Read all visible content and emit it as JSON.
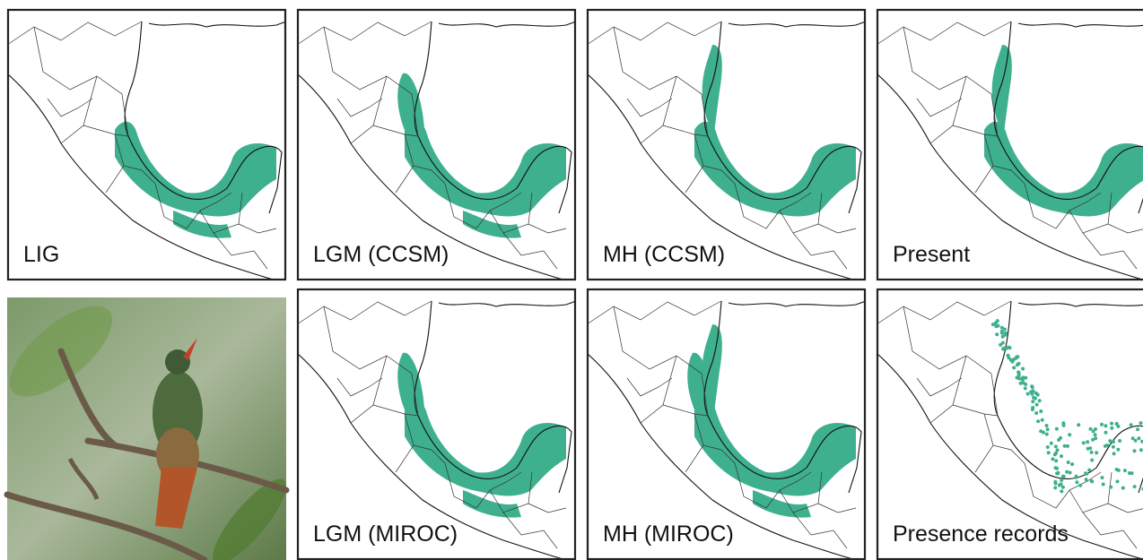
{
  "panels": [
    {
      "label": "LIG"
    },
    {
      "label": "LGM (CCSM)"
    },
    {
      "label": "MH (CCSM)"
    },
    {
      "label": "Present"
    },
    {
      "label": "LGM (MIROC)"
    },
    {
      "label": "MH (MIROC)"
    },
    {
      "label": "Presence records"
    }
  ]
}
